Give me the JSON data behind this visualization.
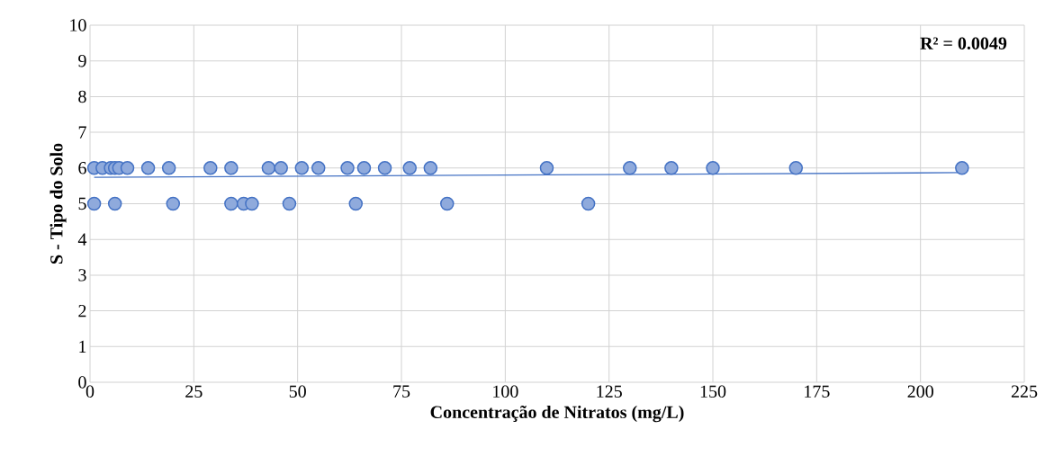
{
  "chart_data": {
    "type": "scatter",
    "xlabel": "Concentração de Nitratos (mg/L)",
    "ylabel": "S - Tipo do Solo",
    "annotations": [
      "R² = 0.0049"
    ],
    "series": [
      {
        "color": "#4472c4",
        "marker": "circle",
        "x": [
          1,
          3,
          5,
          6,
          7,
          9,
          14,
          19,
          29,
          34,
          43,
          46,
          51,
          55,
          62,
          66,
          71,
          77,
          82,
          110,
          130,
          140,
          150,
          170,
          210,
          1,
          6,
          20,
          34,
          37,
          39,
          48,
          64,
          86,
          120
        ],
        "values": [
          6,
          6,
          6,
          6,
          6,
          6,
          6,
          6,
          6,
          6,
          6,
          6,
          6,
          6,
          6,
          6,
          6,
          6,
          6,
          6,
          6,
          6,
          6,
          6,
          6,
          5,
          5,
          5,
          5,
          5,
          5,
          5,
          5,
          5,
          5
        ]
      },
      {
        "type": "line",
        "color": "#4472c4",
        "marker": "none",
        "x": [
          1,
          210
        ],
        "values": [
          5.74,
          5.87
        ]
      }
    ],
    "xlim": [
      0,
      225
    ],
    "ylim": [
      0,
      10
    ],
    "xticks": [
      0,
      25,
      50,
      75,
      100,
      125,
      150,
      175,
      200,
      225
    ],
    "yticks": [
      0,
      1,
      2,
      3,
      4,
      5,
      6,
      7,
      8,
      9,
      10
    ],
    "grid": true
  }
}
